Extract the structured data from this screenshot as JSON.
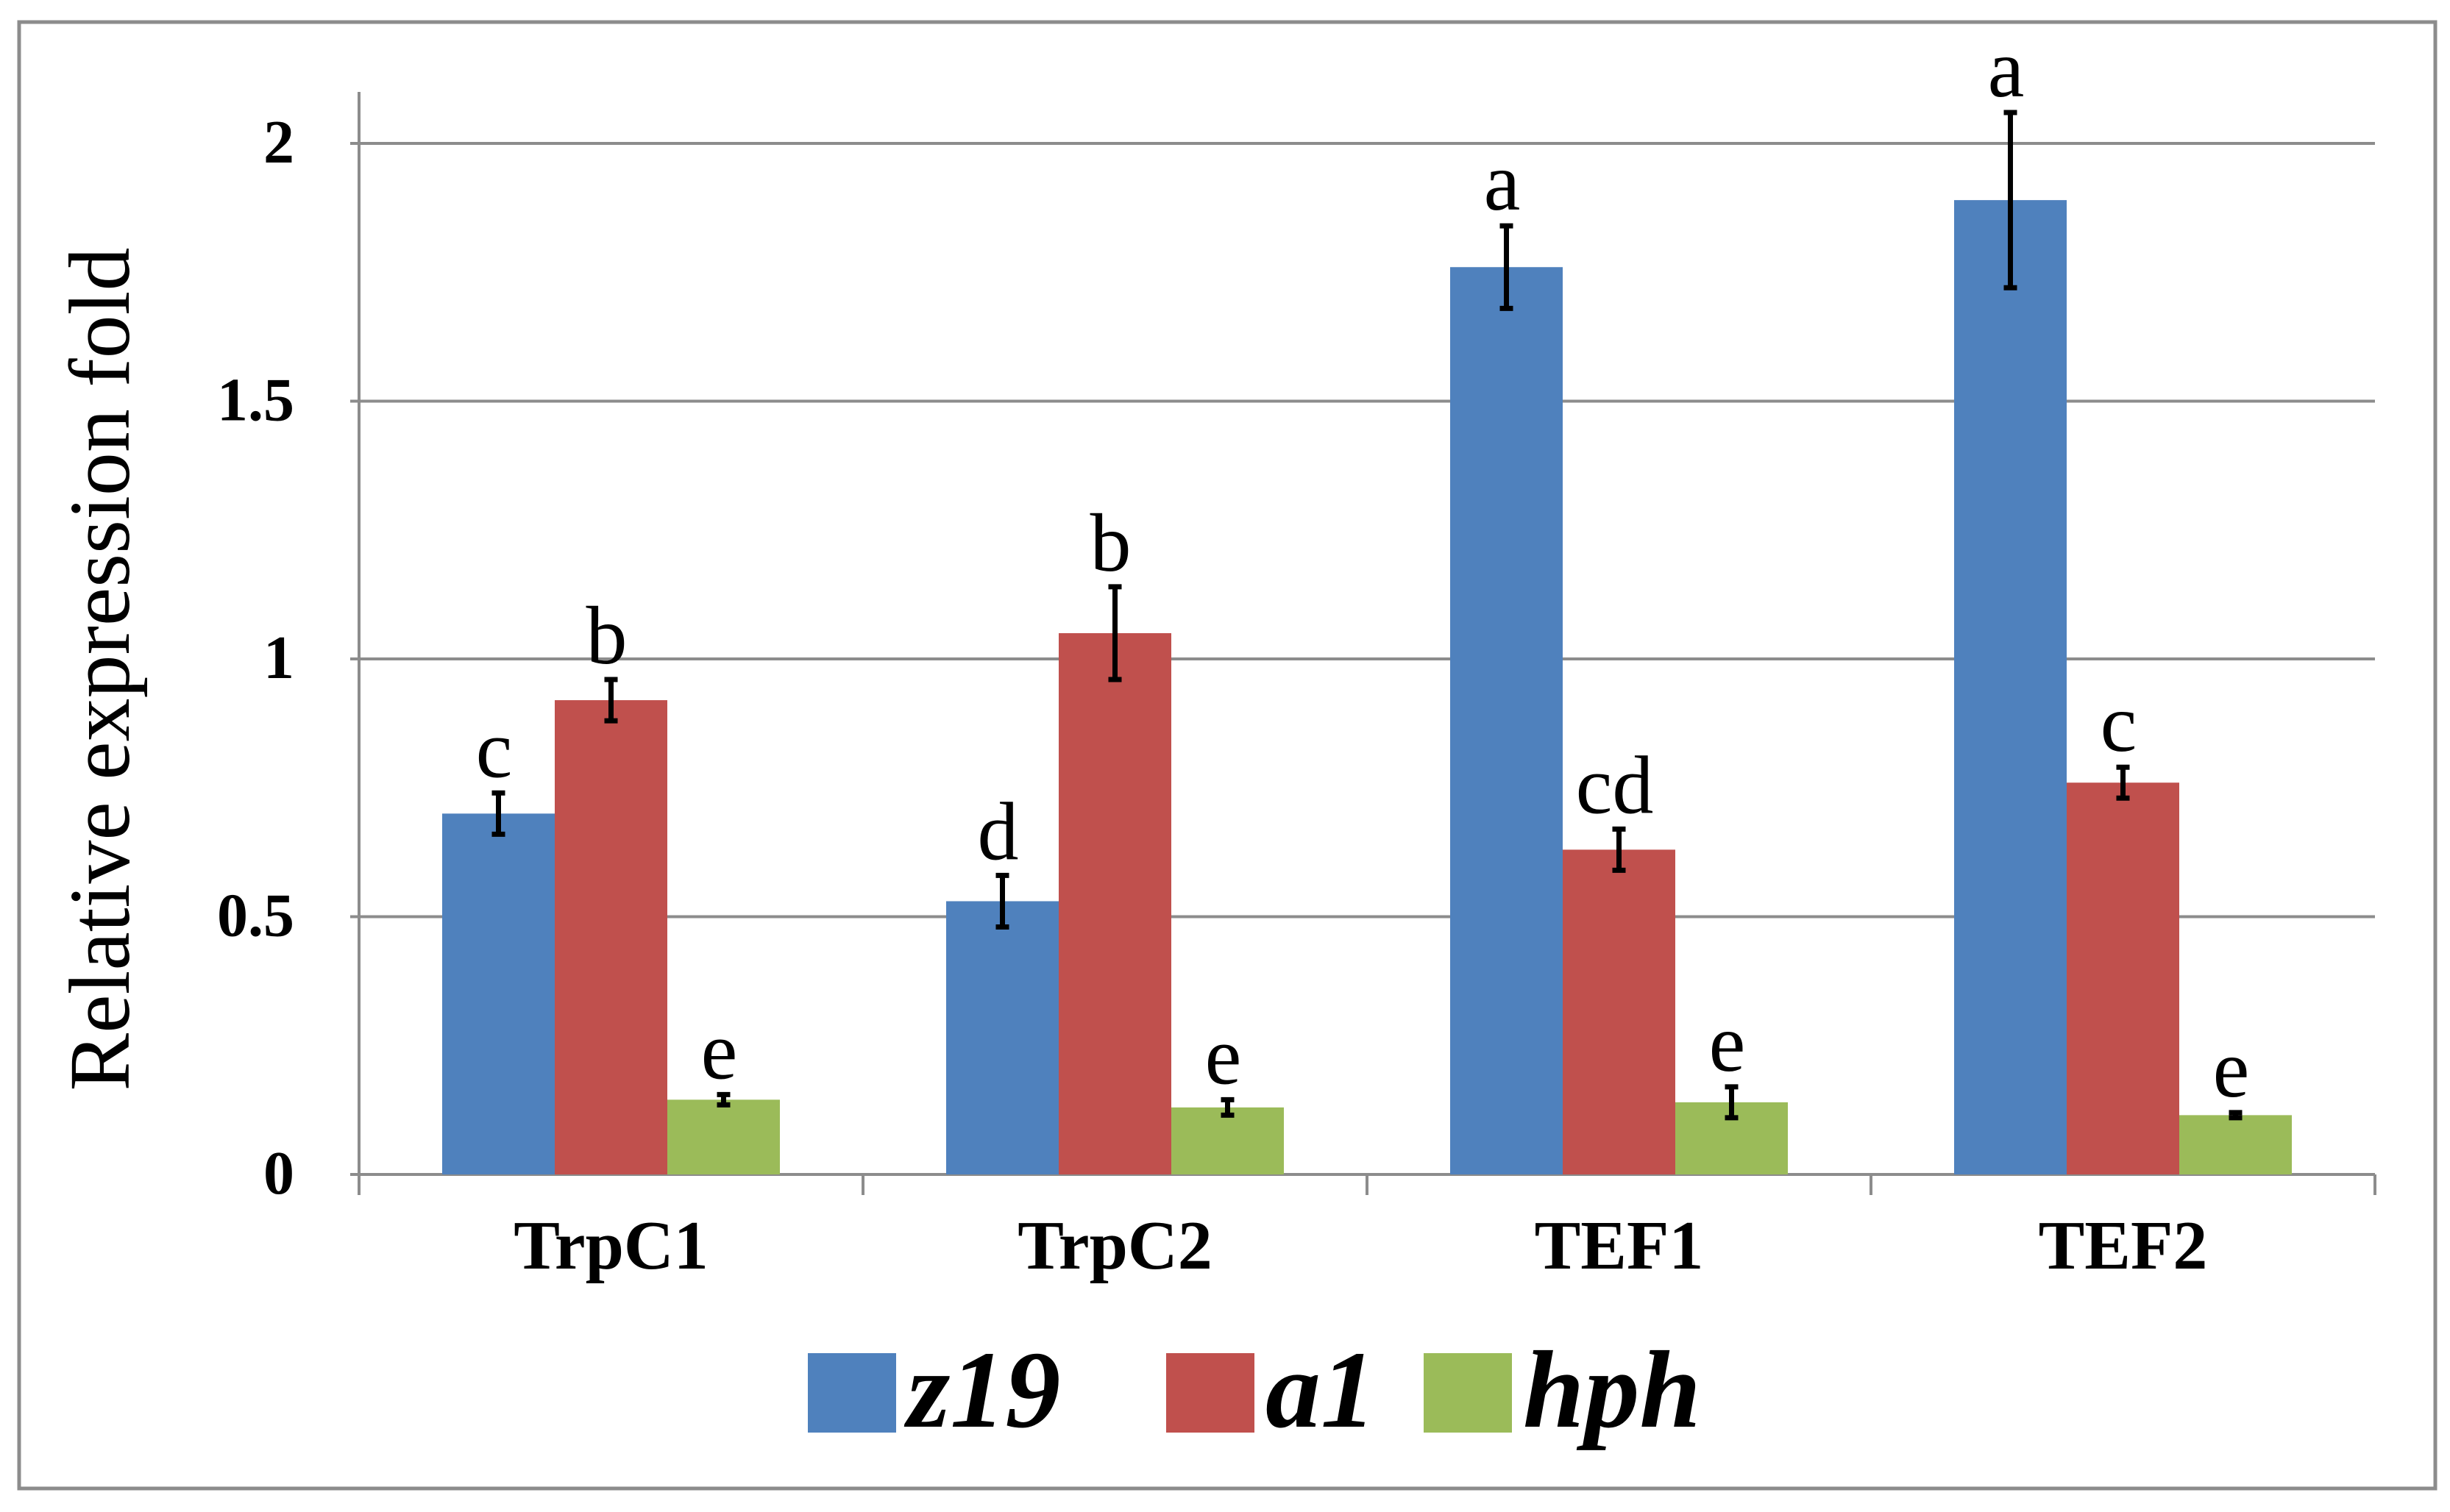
{
  "chart_data": {
    "type": "bar",
    "title": "",
    "xlabel": "",
    "ylabel": "Relative expression fold",
    "ylim": [
      0,
      2.2
    ],
    "yticks": [
      0,
      0.5,
      1,
      1.5,
      2
    ],
    "ytick_labels": [
      "0",
      "0.5",
      "1",
      "1.5",
      "2"
    ],
    "grid": true,
    "legend_position": "bottom",
    "categories": [
      "TrpC1",
      "TrpC2",
      "TEF1",
      "TEF2"
    ],
    "series": [
      {
        "name": "z19",
        "color": "#4f81bd",
        "values": [
          0.7,
          0.53,
          1.76,
          1.89
        ],
        "errors": [
          0.04,
          0.05,
          0.08,
          0.17
        ],
        "labels": [
          "c",
          "d",
          "a",
          "a"
        ]
      },
      {
        "name": "a1",
        "color": "#c0504d",
        "values": [
          0.92,
          1.05,
          0.63,
          0.76
        ],
        "errors": [
          0.04,
          0.09,
          0.04,
          0.03
        ],
        "labels": [
          "b",
          "b",
          "cd",
          "c"
        ]
      },
      {
        "name": "hph",
        "color": "#9bbb59",
        "values": [
          0.145,
          0.13,
          0.14,
          0.115
        ],
        "errors": [
          0.01,
          0.015,
          0.03,
          0.005
        ],
        "labels": [
          "e",
          "e",
          "e",
          "e"
        ]
      }
    ]
  }
}
